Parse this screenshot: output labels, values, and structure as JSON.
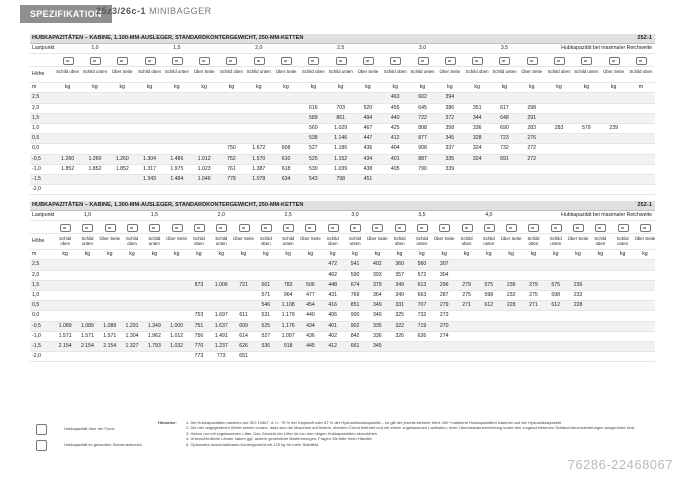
{
  "header": {
    "section": "SPEZIFIKATION",
    "model_bold": "25z3/26c-1",
    "model_rest": "MINIBAGGER"
  },
  "table1": {
    "title": "HUBKAPAZITÄTEN – KABINE, 1.100-MM-AUSLEGER, STANDARDKONTERGEWICHT, 250-MM-KETTEN",
    "code": "25Z-1",
    "lastpunkt_label": "Lastpunkt",
    "lastpunkt_values": [
      "1,0",
      "1,5",
      "2,0",
      "2,5",
      "3,0",
      "3,5"
    ],
    "max_label": "Hubkapazität bei maximaler Reichweite",
    "hoehe_label": "Höhe",
    "sub_headers": [
      "Schild oben",
      "Schild unten",
      "Über Seite",
      "Schild oben",
      "Schild unten",
      "Über Seite",
      "Schild oben",
      "Schild unten",
      "Über Seite",
      "Schild oben",
      "Schild unten",
      "Über Seite",
      "Schild oben",
      "Schild unten",
      "Über Seite",
      "Schild oben",
      "Schild unten",
      "Über Seite",
      "Schild oben",
      "Schild unten",
      "Über Seite",
      "Max."
    ],
    "unit_row": [
      "m",
      "kg",
      "kg",
      "kg",
      "kg",
      "kg",
      "kg",
      "kg",
      "kg",
      "kg",
      "kg",
      "kg",
      "kg",
      "kg",
      "kg",
      "kg",
      "kg",
      "kg",
      "kg",
      "kg",
      "kg",
      "kg",
      "m"
    ],
    "rows": [
      [
        "2,5",
        "",
        "",
        "",
        "",
        "",
        "",
        "",
        "",
        "",
        "",
        "",
        "",
        "463",
        "602",
        "394",
        "",
        "",
        "",
        "",
        "",
        "",
        ""
      ],
      [
        "2,0",
        "",
        "",
        "",
        "",
        "",
        "",
        "",
        "",
        "",
        "616",
        "703",
        "520",
        "455",
        "645",
        "386",
        "351",
        "617",
        "298",
        "",
        "",
        "",
        ""
      ],
      [
        "1,5",
        "",
        "",
        "",
        "",
        "",
        "",
        "",
        "",
        "",
        "589",
        "861",
        "494",
        "440",
        "722",
        "372",
        "344",
        "648",
        "291",
        "",
        "",
        "",
        ""
      ],
      [
        "1,0",
        "",
        "",
        "",
        "",
        "",
        "",
        "",
        "",
        "",
        "560",
        "1.029",
        "467",
        "425",
        "808",
        "358",
        "336",
        "690",
        "283",
        "283",
        "579",
        "239",
        ""
      ],
      [
        "0,5",
        "",
        "",
        "",
        "",
        "",
        "",
        "",
        "",
        "",
        "538",
        "1.146",
        "447",
        "412",
        "877",
        "345",
        "328",
        "723",
        "276",
        "",
        "",
        "",
        ""
      ],
      [
        "0,0",
        "",
        "",
        "",
        "",
        "",
        "",
        "750",
        "1.672",
        "608",
        "527",
        "1.186",
        "436",
        "404",
        "908",
        "337",
        "324",
        "732",
        "272",
        "",
        "",
        "",
        ""
      ],
      [
        "-0,5",
        "1.260",
        "1.260",
        "1.260",
        "1.304",
        "1.486",
        "1.012",
        "752",
        "1.570",
        "610",
        "525",
        "1.152",
        "434",
        "401",
        "887",
        "335",
        "324",
        "691",
        "272",
        "",
        "",
        "",
        ""
      ],
      [
        "-1,0",
        "1.852",
        "1.852",
        "1.852",
        "1.317",
        "1.975",
        "1.023",
        "761",
        "1.387",
        "618",
        "530",
        "1.039",
        "438",
        "405",
        "790",
        "339",
        "",
        "",
        "",
        "",
        "",
        "",
        ""
      ],
      [
        "-1,5",
        "",
        "",
        "",
        "1.343",
        "1.484",
        "1.046",
        "778",
        "1.078",
        "634",
        "543",
        "798",
        "451",
        "",
        "",
        "",
        "",
        "",
        "",
        "",
        "",
        "",
        ""
      ],
      [
        "-2,0",
        "",
        "",
        "",
        "",
        "",
        "",
        "",
        "",
        "",
        "",
        "",
        "",
        "",
        "",
        "",
        "",
        "",
        "",
        "",
        "",
        "",
        ""
      ]
    ]
  },
  "table2": {
    "title": "HUBKAPAZITÄTEN – KABINE, 1.300-MM-AUSLEGER, STANDARDKONTERGEWICHT, 250-MM-KETTEN",
    "code": "25Z-1",
    "lastpunkt_label": "Lastpunkt",
    "lastpunkt_values": [
      "1,0",
      "1,5",
      "2,0",
      "2,5",
      "3,0",
      "3,5",
      "4,0"
    ],
    "max_label": "Hubkapazität bei maximaler Reichweite",
    "hoehe_label": "Höhe",
    "unit_row": [
      "m",
      "kg",
      "kg",
      "kg",
      "kg",
      "kg",
      "kg",
      "kg",
      "kg",
      "kg",
      "kg",
      "kg",
      "kg",
      "kg",
      "kg",
      "kg",
      "kg",
      "kg",
      "kg",
      "kg",
      "kg",
      "kg",
      "kg",
      "kg",
      "kg",
      "kg",
      "kg",
      "kg"
    ],
    "rows": [
      [
        "2,5",
        "",
        "",
        "",
        "",
        "",
        "",
        "",
        "",
        "",
        "",
        "",
        "",
        "472",
        "541",
        "402",
        "360",
        "560",
        "307",
        "",
        "",
        "",
        "",
        "",
        "",
        "",
        "",
        ""
      ],
      [
        "2,0",
        "",
        "",
        "",
        "",
        "",
        "",
        "",
        "",
        "",
        "",
        "",
        "",
        "462",
        "590",
        "393",
        "357",
        "572",
        "304",
        "",
        "",
        "",
        "",
        "",
        "",
        "",
        "",
        ""
      ],
      [
        "1,5",
        "",
        "",
        "",
        "",
        "",
        "",
        "873",
        "1.006",
        "721",
        "601",
        "782",
        "506",
        "448",
        "674",
        "379",
        "349",
        "613",
        "296",
        "279",
        "575",
        "236",
        "279",
        "575",
        "236",
        "",
        "",
        ""
      ],
      [
        "1,0",
        "",
        "",
        "",
        "",
        "",
        "",
        "",
        "",
        "",
        "571",
        "964",
        "477",
        "431",
        "769",
        "364",
        "340",
        "663",
        "287",
        "275",
        "598",
        "232",
        "275",
        "598",
        "232",
        "",
        "",
        ""
      ],
      [
        "0,5",
        "",
        "",
        "",
        "",
        "",
        "",
        "",
        "",
        "",
        "546",
        "1.108",
        "454",
        "416",
        "851",
        "349",
        "331",
        "707",
        "279",
        "271",
        "612",
        "228",
        "271",
        "612",
        "228",
        "",
        "",
        ""
      ],
      [
        "0,0",
        "",
        "",
        "",
        "",
        "",
        "",
        "753",
        "1.697",
        "611",
        "531",
        "1.179",
        "440",
        "406",
        "900",
        "340",
        "325",
        "732",
        "273",
        "",
        "",
        "",
        "",
        "",
        "",
        "",
        "",
        ""
      ],
      [
        "-0,5",
        "1.089",
        "1.089",
        "1.089",
        "1.291",
        "1.349",
        "1.000",
        "751",
        "1.637",
        "609",
        "525",
        "1.176",
        "434",
        "401",
        "902",
        "335",
        "322",
        "719",
        "270",
        "",
        "",
        "",
        "",
        "",
        "",
        "",
        "",
        ""
      ],
      [
        "-1,0",
        "1.571",
        "1.571",
        "1.571",
        "1.304",
        "1.962",
        "1.012",
        "756",
        "1.491",
        "614",
        "527",
        "1.097",
        "436",
        "402",
        "842",
        "336",
        "326",
        "626",
        "274",
        "",
        "",
        "",
        "",
        "",
        "",
        "",
        "",
        ""
      ],
      [
        "-1,5",
        "2.154",
        "2.154",
        "2.154",
        "1.327",
        "1.793",
        "1.032",
        "770",
        "1.237",
        "626",
        "536",
        "918",
        "445",
        "412",
        "661",
        "345",
        "",
        "",
        "",
        "",
        "",
        "",
        "",
        "",
        "",
        "",
        "",
        ""
      ],
      [
        "-2,0",
        "",
        "",
        "",
        "",
        "",
        "",
        "773",
        "773",
        "651",
        "",
        "",
        "",
        "",
        "",
        "",
        "",
        "",
        "",
        "",
        "",
        "",
        "",
        "",
        "",
        "",
        "",
        ""
      ]
    ]
  },
  "legend": [
    {
      "icon": "front-load-icon",
      "text": "Hubkapazität über der Front."
    },
    {
      "icon": "swing-load-icon",
      "text": "Hubkapazität im gesamten Schwenkbereich."
    }
  ],
  "notes": {
    "heading": "Hinweise:",
    "lines": [
      "1.  Die Hubkapazitäten basieren auf ISO 10567, d. h.: 75 % der Kippkraft oder 87 % der Hydraulikhubkapazität – es gilt der jeweils kleinere Wert. Mit * markierte Hubkapazitäten basieren auf der Hydraulikkapazität.",
      "2.  Die hier angegebenen Werte setzen voraus, dass sich die Maschine auf festem, ebenem Grund befindet und mit einem zugelassenen Lasthaken, einer Überlastwarneinrichtung sowie den vorgeschriebenen Schlauchbruchsicherungen ausgerüstet sind.",
      "3.  Heben nur mit zugelassenen Lifter. Das Gewicht der Lifter ist von den obigen Hubkapazitäten abzuziehen.",
      "4.  Unterschiedliche Länder haben ggf. andere gesetzliche Bestimmungen. Fragen Sie bitte Ihren Händler.",
      "5.  Optionales anschraubbares Kontergewicht mit 120 kg für mehr Stabilität."
    ]
  },
  "watermark": "76286-22468067"
}
